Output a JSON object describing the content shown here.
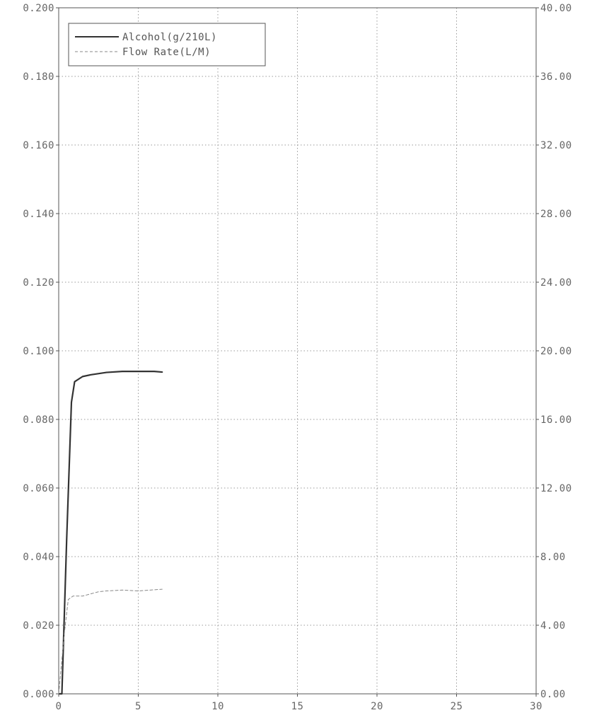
{
  "chart_data": {
    "type": "line",
    "title": "",
    "xlabel": "",
    "ylabel": "",
    "y2label": "",
    "xlim": [
      0,
      30
    ],
    "ylim": [
      0,
      0.2
    ],
    "y2lim": [
      0,
      40
    ],
    "x_ticks": [
      "0",
      "5",
      "10",
      "15",
      "20",
      "25",
      "30"
    ],
    "y_ticks": [
      "0.000",
      "0.020",
      "0.040",
      "0.060",
      "0.080",
      "0.100",
      "0.120",
      "0.140",
      "0.160",
      "0.180",
      "0.200"
    ],
    "y2_ticks": [
      "0.00",
      "4.00",
      "8.00",
      "12.00",
      "16.00",
      "20.00",
      "24.00",
      "28.00",
      "32.00",
      "36.00",
      "40.00"
    ],
    "grid": true,
    "legend_position": "top-left",
    "series": [
      {
        "name": "Alcohol(g/210L)",
        "axis": "left",
        "style": "solid",
        "color": "#333333",
        "x": [
          0.05,
          0.2,
          0.5,
          0.8,
          1.0,
          1.5,
          2.0,
          3.0,
          4.0,
          5.0,
          6.0,
          6.5
        ],
        "y": [
          0.0,
          0.0,
          0.045,
          0.085,
          0.091,
          0.0925,
          0.093,
          0.0937,
          0.094,
          0.094,
          0.094,
          0.0938
        ]
      },
      {
        "name": "Flow Rate(L/M)",
        "axis": "right",
        "style": "dashed",
        "color": "#888888",
        "x": [
          0.0,
          0.1,
          0.35,
          0.6,
          0.9,
          1.5,
          2.5,
          3.0,
          4.0,
          5.0,
          6.5
        ],
        "y": [
          0.0,
          1.0,
          3.5,
          5.5,
          5.7,
          5.7,
          5.95,
          6.0,
          6.05,
          6.0,
          6.1
        ]
      }
    ]
  }
}
